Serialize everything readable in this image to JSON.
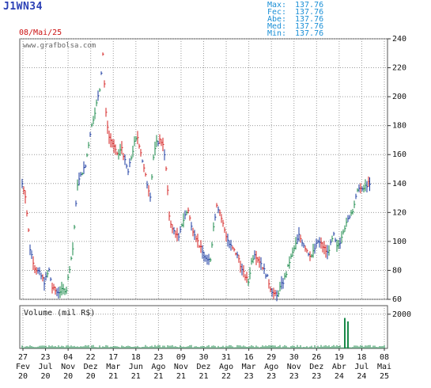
{
  "header": {
    "ticker": "J1WN34",
    "date": "08/Mai/25",
    "stats": [
      {
        "label": "Max:",
        "value": "137.76"
      },
      {
        "label": "Fec:",
        "value": "137.76"
      },
      {
        "label": "Abe:",
        "value": "137.76"
      },
      {
        "label": "Med:",
        "value": "137.76"
      },
      {
        "label": "Min:",
        "value": "137.76"
      }
    ]
  },
  "watermark": "www.grafbolsa.com",
  "volume_label": "Volume (mil R$)",
  "colors": {
    "up": "#1a8a4a",
    "down": "#d42020",
    "neutral": "#1a3aa0",
    "grid": "#9a9a9a"
  },
  "chart_data": {
    "type": "ohlc",
    "price_axis": {
      "ticks": [
        "240",
        "220",
        "200",
        "180",
        "160",
        "140",
        "120",
        "100",
        "80",
        "60"
      ],
      "range": [
        60,
        240
      ],
      "position": "right"
    },
    "volume_axis": {
      "ticks": [
        "2000"
      ],
      "range": [
        0,
        2500
      ]
    },
    "x_ticks": [
      {
        "day": "27",
        "mon": "Fev",
        "yr": "20"
      },
      {
        "day": "23",
        "mon": "Jul",
        "yr": "20"
      },
      {
        "day": "04",
        "mon": "Nov",
        "yr": "20"
      },
      {
        "day": "22",
        "mon": "Dez",
        "yr": "20"
      },
      {
        "day": "17",
        "mon": "Mar",
        "yr": "21"
      },
      {
        "day": "18",
        "mon": "Jun",
        "yr": "21"
      },
      {
        "day": "23",
        "mon": "Ago",
        "yr": "21"
      },
      {
        "day": "09",
        "mon": "Nov",
        "yr": "21"
      },
      {
        "day": "30",
        "mon": "Dez",
        "yr": "21"
      },
      {
        "day": "31",
        "mon": "Ago",
        "yr": "22"
      },
      {
        "day": "16",
        "mon": "Mar",
        "yr": "23"
      },
      {
        "day": "29",
        "mon": "Ago",
        "yr": "23"
      },
      {
        "day": "30",
        "mon": "Nov",
        "yr": "23"
      },
      {
        "day": "26",
        "mon": "Dez",
        "yr": "23"
      },
      {
        "day": "19",
        "mon": "Abr",
        "yr": "24"
      },
      {
        "day": "18",
        "mon": "Jul",
        "yr": "24"
      },
      {
        "day": "08",
        "mon": "Mai",
        "yr": "25"
      }
    ],
    "price_path": [
      [
        0,
        140
      ],
      [
        4,
        132
      ],
      [
        10,
        95
      ],
      [
        16,
        82
      ],
      [
        22,
        78
      ],
      [
        28,
        72
      ],
      [
        34,
        80
      ],
      [
        38,
        68
      ],
      [
        44,
        65
      ],
      [
        50,
        66
      ],
      [
        56,
        67
      ],
      [
        60,
        82
      ],
      [
        64,
        95
      ],
      [
        70,
        140
      ],
      [
        76,
        148
      ],
      [
        80,
        152
      ],
      [
        86,
        175
      ],
      [
        90,
        185
      ],
      [
        94,
        195
      ],
      [
        98,
        205
      ],
      [
        102,
        230
      ],
      [
        106,
        188
      ],
      [
        110,
        172
      ],
      [
        114,
        168
      ],
      [
        118,
        162
      ],
      [
        122,
        160
      ],
      [
        126,
        165
      ],
      [
        130,
        155
      ],
      [
        134,
        148
      ],
      [
        138,
        158
      ],
      [
        142,
        168
      ],
      [
        146,
        172
      ],
      [
        150,
        162
      ],
      [
        154,
        150
      ],
      [
        158,
        140
      ],
      [
        162,
        132
      ],
      [
        166,
        158
      ],
      [
        170,
        168
      ],
      [
        174,
        170
      ],
      [
        178,
        168
      ],
      [
        182,
        150
      ],
      [
        186,
        118
      ],
      [
        190,
        108
      ],
      [
        194,
        106
      ],
      [
        198,
        102
      ],
      [
        202,
        112
      ],
      [
        206,
        118
      ],
      [
        210,
        122
      ],
      [
        214,
        110
      ],
      [
        218,
        106
      ],
      [
        222,
        100
      ],
      [
        226,
        95
      ],
      [
        230,
        90
      ],
      [
        234,
        86
      ],
      [
        238,
        88
      ],
      [
        242,
        110
      ],
      [
        246,
        126
      ],
      [
        250,
        120
      ],
      [
        254,
        112
      ],
      [
        258,
        104
      ],
      [
        262,
        98
      ],
      [
        266,
        95
      ],
      [
        270,
        92
      ],
      [
        274,
        88
      ],
      [
        278,
        80
      ],
      [
        282,
        76
      ],
      [
        286,
        72
      ],
      [
        290,
        86
      ],
      [
        294,
        92
      ],
      [
        298,
        88
      ],
      [
        302,
        85
      ],
      [
        306,
        80
      ],
      [
        310,
        75
      ],
      [
        314,
        68
      ],
      [
        318,
        64
      ],
      [
        322,
        62
      ],
      [
        326,
        68
      ],
      [
        330,
        72
      ],
      [
        334,
        78
      ],
      [
        338,
        86
      ],
      [
        342,
        92
      ],
      [
        346,
        98
      ],
      [
        350,
        104
      ],
      [
        354,
        100
      ],
      [
        358,
        96
      ],
      [
        362,
        92
      ],
      [
        366,
        90
      ],
      [
        370,
        95
      ],
      [
        374,
        100
      ],
      [
        378,
        98
      ],
      [
        382,
        95
      ],
      [
        386,
        92
      ],
      [
        390,
        98
      ],
      [
        394,
        104
      ],
      [
        398,
        96
      ],
      [
        402,
        100
      ],
      [
        406,
        108
      ],
      [
        410,
        112
      ],
      [
        414,
        118
      ],
      [
        418,
        122
      ],
      [
        422,
        130
      ],
      [
        426,
        138
      ],
      [
        430,
        135
      ],
      [
        434,
        138
      ],
      [
        438,
        140
      ],
      [
        441,
        138
      ]
    ],
    "volume_spikes": [
      {
        "offset": 408,
        "value": 1780
      },
      {
        "offset": 412,
        "value": 1580
      }
    ]
  }
}
